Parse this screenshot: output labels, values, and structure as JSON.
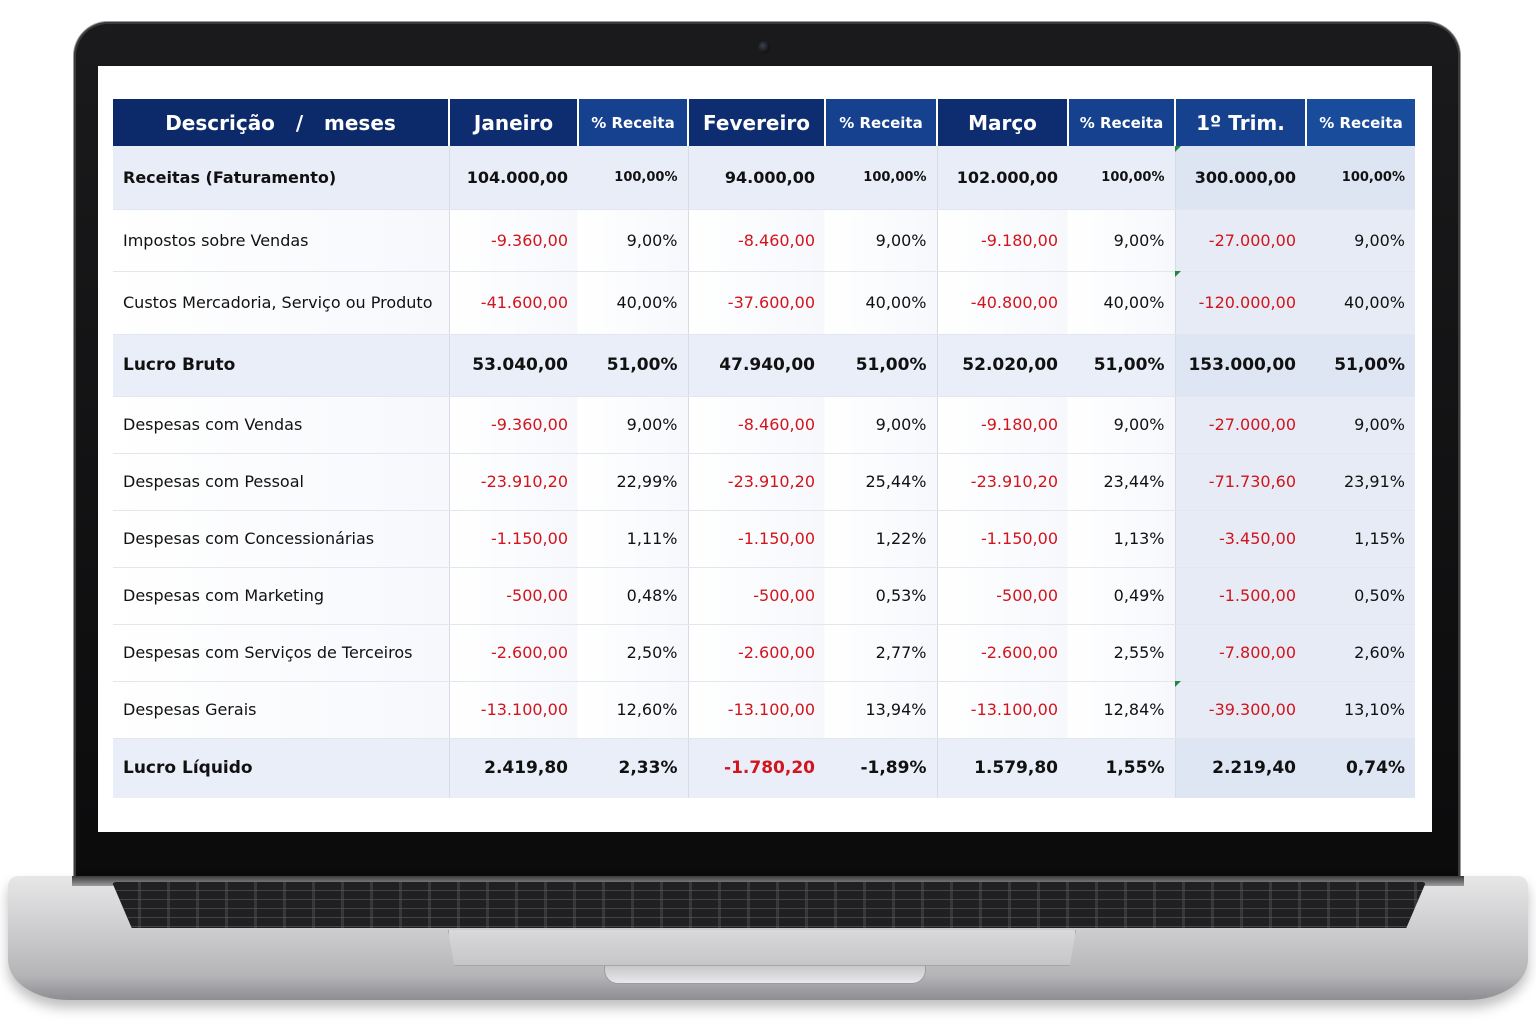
{
  "table": {
    "headers": {
      "description": "Descrição   /   meses",
      "jan": "Janeiro",
      "feb": "Fevereiro",
      "mar": "Março",
      "q1": "1º Trim.",
      "pct": "% Receita"
    },
    "rows": [
      {
        "label": "Receitas (Faturamento)",
        "jan": "104.000,00",
        "jan_pct": "100,00%",
        "feb": "94.000,00",
        "feb_pct": "100,00%",
        "mar": "102.000,00",
        "mar_pct": "100,00%",
        "q1": "300.000,00",
        "q1_pct": "100,00%"
      },
      {
        "label": "Impostos sobre Vendas",
        "jan": "-9.360,00",
        "jan_pct": "9,00%",
        "feb": "-8.460,00",
        "feb_pct": "9,00%",
        "mar": "-9.180,00",
        "mar_pct": "9,00%",
        "q1": "-27.000,00",
        "q1_pct": "9,00%"
      },
      {
        "label": "Custos Mercadoria, Serviço ou Produto",
        "jan": "-41.600,00",
        "jan_pct": "40,00%",
        "feb": "-37.600,00",
        "feb_pct": "40,00%",
        "mar": "-40.800,00",
        "mar_pct": "40,00%",
        "q1": "-120.000,00",
        "q1_pct": "40,00%"
      },
      {
        "label": "Lucro Bruto",
        "jan": "53.040,00",
        "jan_pct": "51,00%",
        "feb": "47.940,00",
        "feb_pct": "51,00%",
        "mar": "52.020,00",
        "mar_pct": "51,00%",
        "q1": "153.000,00",
        "q1_pct": "51,00%"
      },
      {
        "label": "Despesas com Vendas",
        "jan": "-9.360,00",
        "jan_pct": "9,00%",
        "feb": "-8.460,00",
        "feb_pct": "9,00%",
        "mar": "-9.180,00",
        "mar_pct": "9,00%",
        "q1": "-27.000,00",
        "q1_pct": "9,00%"
      },
      {
        "label": "Despesas com Pessoal",
        "jan": "-23.910,20",
        "jan_pct": "22,99%",
        "feb": "-23.910,20",
        "feb_pct": "25,44%",
        "mar": "-23.910,20",
        "mar_pct": "23,44%",
        "q1": "-71.730,60",
        "q1_pct": "23,91%"
      },
      {
        "label": "Despesas com Concessionárias",
        "jan": "-1.150,00",
        "jan_pct": "1,11%",
        "feb": "-1.150,00",
        "feb_pct": "1,22%",
        "mar": "-1.150,00",
        "mar_pct": "1,13%",
        "q1": "-3.450,00",
        "q1_pct": "1,15%"
      },
      {
        "label": "Despesas com Marketing",
        "jan": "-500,00",
        "jan_pct": "0,48%",
        "feb": "-500,00",
        "feb_pct": "0,53%",
        "mar": "-500,00",
        "mar_pct": "0,49%",
        "q1": "-1.500,00",
        "q1_pct": "0,50%"
      },
      {
        "label": "Despesas com Serviços de Terceiros",
        "jan": "-2.600,00",
        "jan_pct": "2,50%",
        "feb": "-2.600,00",
        "feb_pct": "2,77%",
        "mar": "-2.600,00",
        "mar_pct": "2,55%",
        "q1": "-7.800,00",
        "q1_pct": "2,60%"
      },
      {
        "label": "Despesas Gerais",
        "jan": "-13.100,00",
        "jan_pct": "12,60%",
        "feb": "-13.100,00",
        "feb_pct": "13,94%",
        "mar": "-13.100,00",
        "mar_pct": "12,84%",
        "q1": "-39.300,00",
        "q1_pct": "13,10%"
      },
      {
        "label": "Lucro Líquido",
        "jan": "2.419,80",
        "jan_pct": "2,33%",
        "feb": "-1.780,20",
        "feb_pct": "-1,89%",
        "mar": "1.579,80",
        "mar_pct": "1,55%",
        "q1": "2.219,40",
        "q1_pct": "0,74%"
      }
    ]
  },
  "colors": {
    "header_bg": "#0e2f72",
    "negative": "#d2141c",
    "quarter_bg": "#e6ebf5"
  }
}
